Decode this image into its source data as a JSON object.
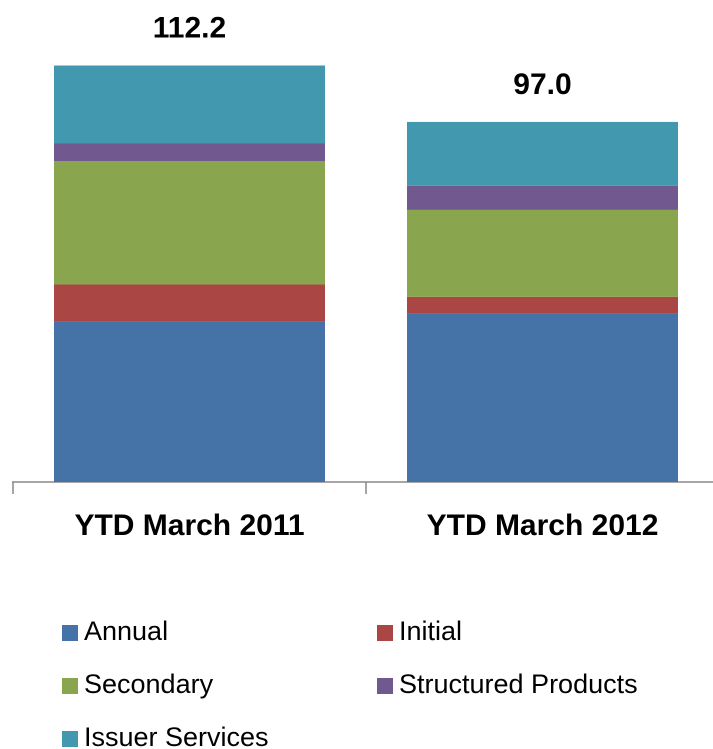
{
  "chart_data": {
    "type": "stacked-bar",
    "categories": [
      "YTD March 2011",
      "YTD March 2012"
    ],
    "series": [
      {
        "name": "Annual",
        "color": "#4572a7",
        "values": [
          43.2,
          45.3
        ]
      },
      {
        "name": "Initial",
        "color": "#aa4643",
        "values": [
          10.0,
          4.6
        ]
      },
      {
        "name": "Secondary",
        "color": "#89a54e",
        "values": [
          33.2,
          23.4
        ]
      },
      {
        "name": "Structured Products",
        "color": "#71588f",
        "values": [
          4.9,
          6.5
        ]
      },
      {
        "name": "Issuer Services",
        "color": "#4198af",
        "values": [
          20.9,
          17.2
        ]
      }
    ],
    "totals": [
      112.2,
      97.0
    ],
    "total_labels": [
      "112.2",
      "97.0"
    ],
    "ylim": [
      0,
      125
    ],
    "legend": "bottom"
  }
}
